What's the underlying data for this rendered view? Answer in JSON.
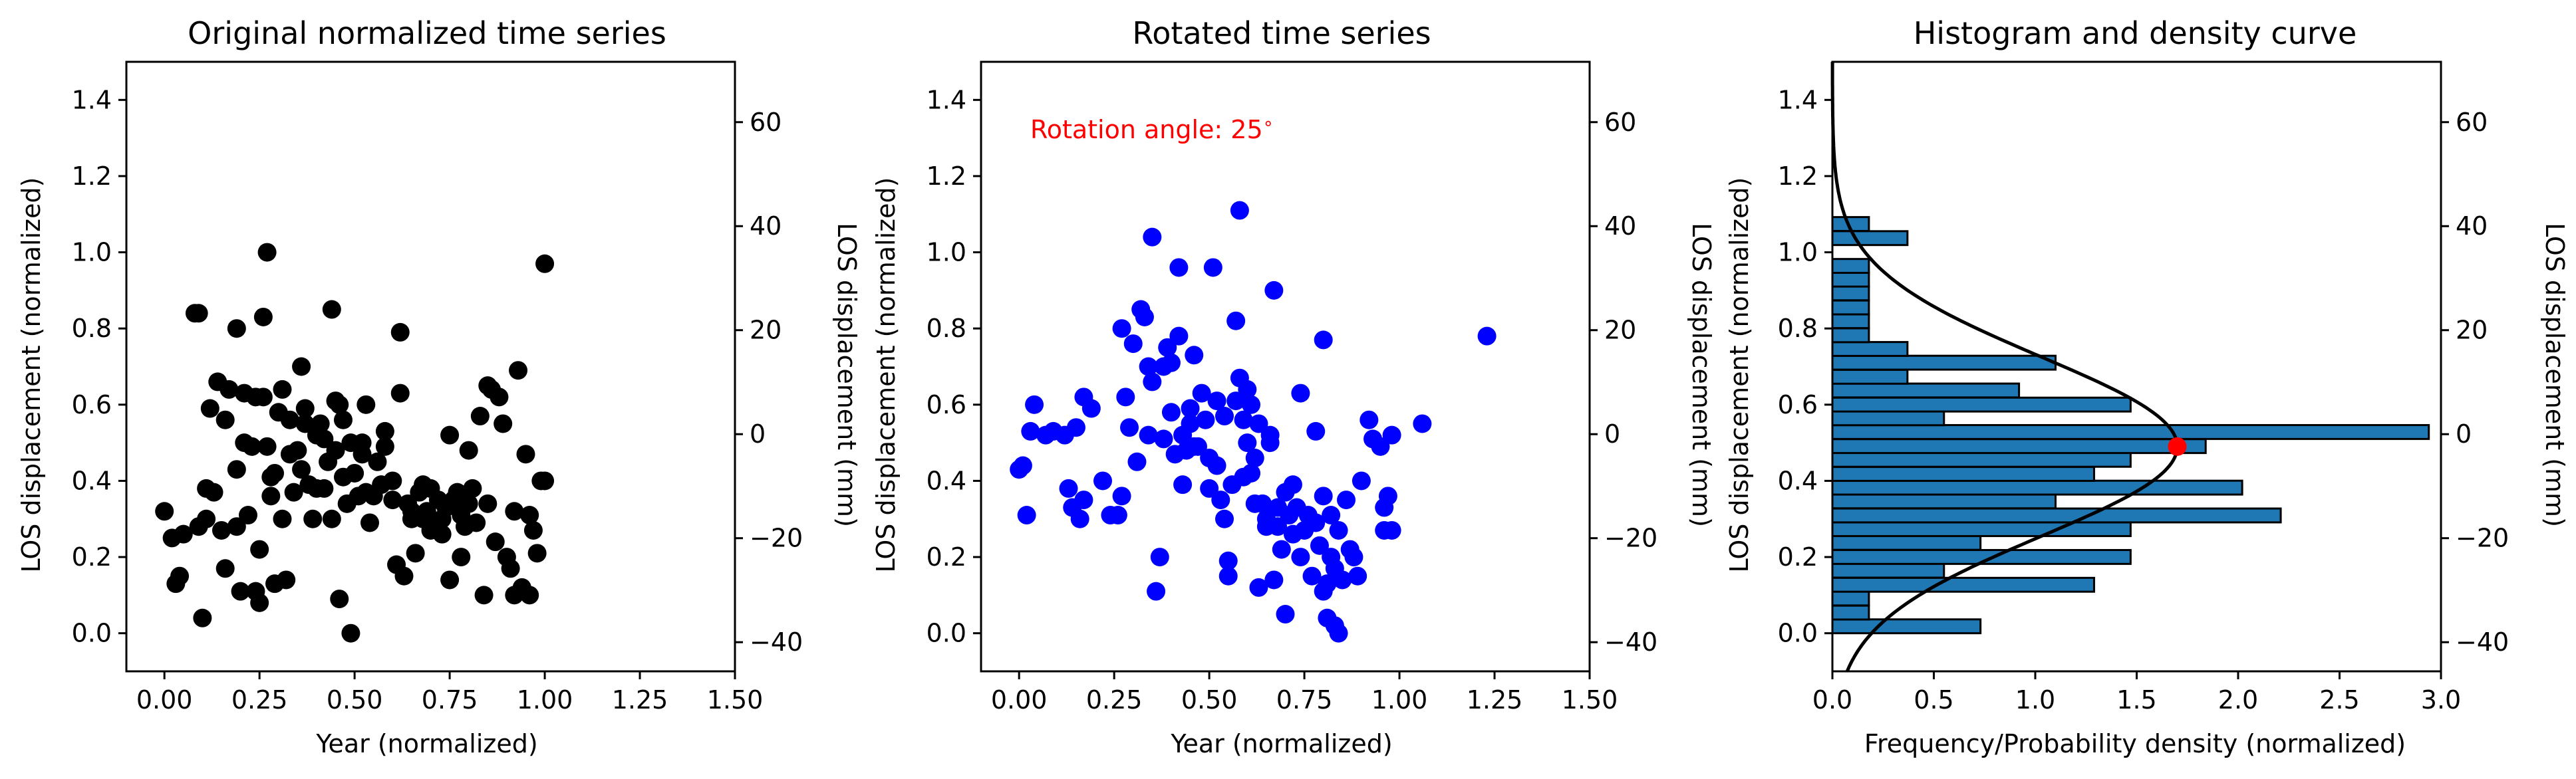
{
  "chart_data": [
    {
      "type": "scatter",
      "title": "Original normalized time series",
      "xlabel": "Year (normalized)",
      "ylabel": "LOS displacement (normalized)",
      "ylabel_right": "LOS displacement (mm)",
      "xlim": [
        -0.1,
        1.5
      ],
      "ylim": [
        -0.1,
        1.5
      ],
      "y2lim": [
        -45.6,
        71.6
      ],
      "xticks": [
        "0.00",
        "0.25",
        "0.50",
        "0.75",
        "1.00",
        "1.25",
        "1.50"
      ],
      "yticks": [
        "0.0",
        "0.2",
        "0.4",
        "0.6",
        "0.8",
        "1.0",
        "1.2",
        "1.4"
      ],
      "y2ticks": [
        "−40",
        "−20",
        "0",
        "20",
        "40",
        "60"
      ],
      "marker_color": "#000000",
      "points": [
        [
          0.0,
          0.32
        ],
        [
          0.02,
          0.25
        ],
        [
          0.03,
          0.13
        ],
        [
          0.04,
          0.15
        ],
        [
          0.05,
          0.26
        ],
        [
          0.08,
          0.84
        ],
        [
          0.09,
          0.84
        ],
        [
          0.09,
          0.28
        ],
        [
          0.1,
          0.04
        ],
        [
          0.11,
          0.38
        ],
        [
          0.11,
          0.3
        ],
        [
          0.12,
          0.59
        ],
        [
          0.13,
          0.37
        ],
        [
          0.14,
          0.66
        ],
        [
          0.15,
          0.27
        ],
        [
          0.16,
          0.56
        ],
        [
          0.17,
          0.64
        ],
        [
          0.16,
          0.17
        ],
        [
          0.19,
          0.8
        ],
        [
          0.19,
          0.43
        ],
        [
          0.19,
          0.28
        ],
        [
          0.2,
          0.11
        ],
        [
          0.21,
          0.63
        ],
        [
          0.21,
          0.5
        ],
        [
          0.22,
          0.31
        ],
        [
          0.23,
          0.49
        ],
        [
          0.24,
          0.62
        ],
        [
          0.24,
          0.11
        ],
        [
          0.25,
          0.08
        ],
        [
          0.25,
          0.22
        ],
        [
          0.26,
          0.83
        ],
        [
          0.26,
          0.62
        ],
        [
          0.27,
          0.49
        ],
        [
          0.27,
          1.0
        ],
        [
          0.28,
          0.41
        ],
        [
          0.28,
          0.36
        ],
        [
          0.29,
          0.42
        ],
        [
          0.29,
          0.13
        ],
        [
          0.3,
          0.58
        ],
        [
          0.31,
          0.64
        ],
        [
          0.31,
          0.3
        ],
        [
          0.32,
          0.14
        ],
        [
          0.33,
          0.56
        ],
        [
          0.33,
          0.47
        ],
        [
          0.34,
          0.37
        ],
        [
          0.35,
          0.48
        ],
        [
          0.36,
          0.7
        ],
        [
          0.36,
          0.43
        ],
        [
          0.37,
          0.55
        ],
        [
          0.37,
          0.59
        ],
        [
          0.38,
          0.39
        ],
        [
          0.39,
          0.3
        ],
        [
          0.4,
          0.38
        ],
        [
          0.4,
          0.52
        ],
        [
          0.41,
          0.55
        ],
        [
          0.42,
          0.51
        ],
        [
          0.42,
          0.38
        ],
        [
          0.43,
          0.45
        ],
        [
          0.44,
          0.85
        ],
        [
          0.44,
          0.3
        ],
        [
          0.45,
          0.61
        ],
        [
          0.45,
          0.48
        ],
        [
          0.46,
          0.09
        ],
        [
          0.46,
          0.6
        ],
        [
          0.47,
          0.56
        ],
        [
          0.47,
          0.41
        ],
        [
          0.48,
          0.34
        ],
        [
          0.49,
          0.0
        ],
        [
          0.49,
          0.5
        ],
        [
          0.5,
          0.42
        ],
        [
          0.51,
          0.36
        ],
        [
          0.52,
          0.5
        ],
        [
          0.52,
          0.47
        ],
        [
          0.53,
          0.6
        ],
        [
          0.53,
          0.37
        ],
        [
          0.54,
          0.29
        ],
        [
          0.55,
          0.36
        ],
        [
          0.56,
          0.45
        ],
        [
          0.57,
          0.39
        ],
        [
          0.58,
          0.49
        ],
        [
          0.58,
          0.53
        ],
        [
          0.6,
          0.35
        ],
        [
          0.6,
          0.4
        ],
        [
          0.61,
          0.18
        ],
        [
          0.62,
          0.79
        ],
        [
          0.62,
          0.63
        ],
        [
          0.63,
          0.15
        ],
        [
          0.64,
          0.34
        ],
        [
          0.65,
          0.3
        ],
        [
          0.66,
          0.21
        ],
        [
          0.67,
          0.37
        ],
        [
          0.68,
          0.3
        ],
        [
          0.68,
          0.39
        ],
        [
          0.69,
          0.32
        ],
        [
          0.7,
          0.38
        ],
        [
          0.71,
          0.29
        ],
        [
          0.72,
          0.35
        ],
        [
          0.73,
          0.26
        ],
        [
          0.73,
          0.3
        ],
        [
          0.74,
          0.33
        ],
        [
          0.75,
          0.52
        ],
        [
          0.75,
          0.14
        ],
        [
          0.76,
          0.35
        ],
        [
          0.77,
          0.37
        ],
        [
          0.78,
          0.2
        ],
        [
          0.78,
          0.31
        ],
        [
          0.79,
          0.28
        ],
        [
          0.8,
          0.34
        ],
        [
          0.8,
          0.48
        ],
        [
          0.81,
          0.38
        ],
        [
          0.82,
          0.29
        ],
        [
          0.83,
          0.57
        ],
        [
          0.84,
          0.1
        ],
        [
          0.85,
          0.65
        ],
        [
          0.85,
          0.34
        ],
        [
          0.86,
          0.64
        ],
        [
          0.87,
          0.24
        ],
        [
          0.88,
          0.62
        ],
        [
          0.89,
          0.55
        ],
        [
          0.9,
          0.2
        ],
        [
          0.91,
          0.17
        ],
        [
          0.92,
          0.32
        ],
        [
          0.92,
          0.1
        ],
        [
          0.93,
          0.69
        ],
        [
          0.94,
          0.12
        ],
        [
          0.95,
          0.47
        ],
        [
          0.96,
          0.31
        ],
        [
          0.96,
          0.1
        ],
        [
          0.97,
          0.27
        ],
        [
          0.98,
          0.21
        ],
        [
          0.99,
          0.4
        ],
        [
          1.0,
          0.4
        ],
        [
          1.0,
          0.97
        ],
        [
          0.65,
          0.32
        ],
        [
          0.7,
          0.27
        ]
      ]
    },
    {
      "type": "scatter",
      "title": "Rotated time series",
      "xlabel": "Year (normalized)",
      "ylabel": "LOS displacement (normalized)",
      "ylabel_right": "LOS displacement (mm)",
      "annotation": "Rotation angle: 25$^\\circ$",
      "annotation_display": "Rotation angle: 25",
      "annotation_degree": "∘",
      "annotation_color": "#ff0000",
      "xlim": [
        -0.1,
        1.5
      ],
      "ylim": [
        -0.1,
        1.5
      ],
      "y2lim": [
        -45.6,
        71.6
      ],
      "xticks": [
        "0.00",
        "0.25",
        "0.50",
        "0.75",
        "1.00",
        "1.25",
        "1.50"
      ],
      "yticks": [
        "0.0",
        "0.2",
        "0.4",
        "0.6",
        "0.8",
        "1.0",
        "1.2",
        "1.4"
      ],
      "y2ticks": [
        "−40",
        "−20",
        "0",
        "20",
        "40",
        "60"
      ],
      "marker_color": "#0000ff",
      "points": [
        [
          0.0,
          0.43
        ],
        [
          0.02,
          0.31
        ],
        [
          0.01,
          0.44
        ],
        [
          0.03,
          0.53
        ],
        [
          0.04,
          0.6
        ],
        [
          0.07,
          0.52
        ],
        [
          0.09,
          0.53
        ],
        [
          0.12,
          0.52
        ],
        [
          0.13,
          0.38
        ],
        [
          0.14,
          0.33
        ],
        [
          0.15,
          0.54
        ],
        [
          0.16,
          0.3
        ],
        [
          0.17,
          0.35
        ],
        [
          0.17,
          0.62
        ],
        [
          0.19,
          0.59
        ],
        [
          0.22,
          0.4
        ],
        [
          0.24,
          0.31
        ],
        [
          0.26,
          0.31
        ],
        [
          0.27,
          0.8
        ],
        [
          0.28,
          0.62
        ],
        [
          0.29,
          0.54
        ],
        [
          0.3,
          0.76
        ],
        [
          0.31,
          0.45
        ],
        [
          0.32,
          0.85
        ],
        [
          0.33,
          0.83
        ],
        [
          0.34,
          0.52
        ],
        [
          0.34,
          0.7
        ],
        [
          0.35,
          1.04
        ],
        [
          0.35,
          0.66
        ],
        [
          0.36,
          0.11
        ],
        [
          0.37,
          0.2
        ],
        [
          0.38,
          0.51
        ],
        [
          0.39,
          0.75
        ],
        [
          0.4,
          0.58
        ],
        [
          0.4,
          0.71
        ],
        [
          0.41,
          0.47
        ],
        [
          0.42,
          0.78
        ],
        [
          0.42,
          0.96
        ],
        [
          0.43,
          0.52
        ],
        [
          0.43,
          0.39
        ],
        [
          0.44,
          0.48
        ],
        [
          0.45,
          0.59
        ],
        [
          0.46,
          0.73
        ],
        [
          0.46,
          0.49
        ],
        [
          0.47,
          0.49
        ],
        [
          0.48,
          0.63
        ],
        [
          0.49,
          0.56
        ],
        [
          0.5,
          0.38
        ],
        [
          0.51,
          0.96
        ],
        [
          0.52,
          0.44
        ],
        [
          0.52,
          0.61
        ],
        [
          0.53,
          0.35
        ],
        [
          0.54,
          0.57
        ],
        [
          0.54,
          0.3
        ],
        [
          0.55,
          0.15
        ],
        [
          0.55,
          0.19
        ],
        [
          0.56,
          0.39
        ],
        [
          0.57,
          0.82
        ],
        [
          0.57,
          0.61
        ],
        [
          0.58,
          1.11
        ],
        [
          0.58,
          0.67
        ],
        [
          0.59,
          0.41
        ],
        [
          0.59,
          0.56
        ],
        [
          0.6,
          0.5
        ],
        [
          0.6,
          0.64
        ],
        [
          0.61,
          0.42
        ],
        [
          0.61,
          0.6
        ],
        [
          0.62,
          0.34
        ],
        [
          0.62,
          0.46
        ],
        [
          0.63,
          0.12
        ],
        [
          0.63,
          0.55
        ],
        [
          0.64,
          0.34
        ],
        [
          0.65,
          0.3
        ],
        [
          0.65,
          0.28
        ],
        [
          0.66,
          0.5
        ],
        [
          0.66,
          0.52
        ],
        [
          0.67,
          0.9
        ],
        [
          0.67,
          0.14
        ],
        [
          0.68,
          0.33
        ],
        [
          0.68,
          0.28
        ],
        [
          0.69,
          0.22
        ],
        [
          0.7,
          0.05
        ],
        [
          0.7,
          0.37
        ],
        [
          0.71,
          0.31
        ],
        [
          0.72,
          0.26
        ],
        [
          0.72,
          0.39
        ],
        [
          0.73,
          0.33
        ],
        [
          0.74,
          0.63
        ],
        [
          0.74,
          0.2
        ],
        [
          0.75,
          0.27
        ],
        [
          0.76,
          0.31
        ],
        [
          0.77,
          0.15
        ],
        [
          0.78,
          0.29
        ],
        [
          0.78,
          0.53
        ],
        [
          0.79,
          0.23
        ],
        [
          0.8,
          0.77
        ],
        [
          0.8,
          0.36
        ],
        [
          0.81,
          0.13
        ],
        [
          0.81,
          0.04
        ],
        [
          0.82,
          0.31
        ],
        [
          0.82,
          0.2
        ],
        [
          0.83,
          0.17
        ],
        [
          0.83,
          0.02
        ],
        [
          0.84,
          0.0
        ],
        [
          0.84,
          0.27
        ],
        [
          0.85,
          0.14
        ],
        [
          0.86,
          0.35
        ],
        [
          0.87,
          0.22
        ],
        [
          0.88,
          0.2
        ],
        [
          0.89,
          0.15
        ],
        [
          0.9,
          0.4
        ],
        [
          0.92,
          0.56
        ],
        [
          0.93,
          0.51
        ],
        [
          0.95,
          0.49
        ],
        [
          0.96,
          0.33
        ],
        [
          0.96,
          0.27
        ],
        [
          0.97,
          0.36
        ],
        [
          0.98,
          0.52
        ],
        [
          0.98,
          0.27
        ],
        [
          1.06,
          0.55
        ],
        [
          1.23,
          0.78
        ],
        [
          0.27,
          0.36
        ],
        [
          0.5,
          0.46
        ],
        [
          0.45,
          0.55
        ],
        [
          0.8,
          0.11
        ],
        [
          0.38,
          0.7
        ]
      ]
    },
    {
      "type": "bar",
      "orientation": "horizontal",
      "title": "Histogram and density curve",
      "xlabel": "Frequency/Probability density (normalized)",
      "ylabel": "LOS displacement (normalized)",
      "ylabel_right": "LOS displacement (mm)",
      "xlim": [
        0.0,
        3.0
      ],
      "ylim": [
        -0.1,
        1.5
      ],
      "y2lim": [
        -45.6,
        71.6
      ],
      "xticks": [
        "0.0",
        "0.5",
        "1.0",
        "1.5",
        "2.0",
        "2.5",
        "3.0"
      ],
      "yticks": [
        "0.0",
        "0.2",
        "0.4",
        "0.6",
        "0.8",
        "1.0",
        "1.2",
        "1.4"
      ],
      "y2ticks": [
        "−40",
        "−20",
        "0",
        "20",
        "40",
        "60"
      ],
      "bar_color": "#1f77b4",
      "bin_width": 0.0364,
      "bins": [
        [
          0.0,
          0.73
        ],
        [
          0.036,
          0.18
        ],
        [
          0.073,
          0.18
        ],
        [
          0.109,
          1.29
        ],
        [
          0.146,
          0.55
        ],
        [
          0.182,
          1.47
        ],
        [
          0.219,
          0.73
        ],
        [
          0.255,
          1.47
        ],
        [
          0.291,
          2.21
        ],
        [
          0.328,
          1.1
        ],
        [
          0.364,
          2.02
        ],
        [
          0.4,
          1.29
        ],
        [
          0.437,
          1.47
        ],
        [
          0.473,
          1.84
        ],
        [
          0.51,
          2.94
        ],
        [
          0.546,
          0.55
        ],
        [
          0.582,
          1.47
        ],
        [
          0.619,
          0.92
        ],
        [
          0.655,
          0.37
        ],
        [
          0.692,
          1.1
        ],
        [
          0.728,
          0.37
        ],
        [
          0.764,
          0.18
        ],
        [
          0.801,
          0.18
        ],
        [
          0.837,
          0.18
        ],
        [
          0.874,
          0.18
        ],
        [
          0.91,
          0.18
        ],
        [
          0.946,
          0.18
        ],
        [
          0.983,
          0.0
        ],
        [
          1.019,
          0.37
        ],
        [
          1.056,
          0.18
        ]
      ],
      "density_curve": {
        "mean": 0.49,
        "std": 0.235,
        "peak": 1.7,
        "color": "#000000"
      },
      "peak_marker": {
        "x": 1.7,
        "y": 0.49,
        "color": "#ff0000"
      }
    }
  ]
}
